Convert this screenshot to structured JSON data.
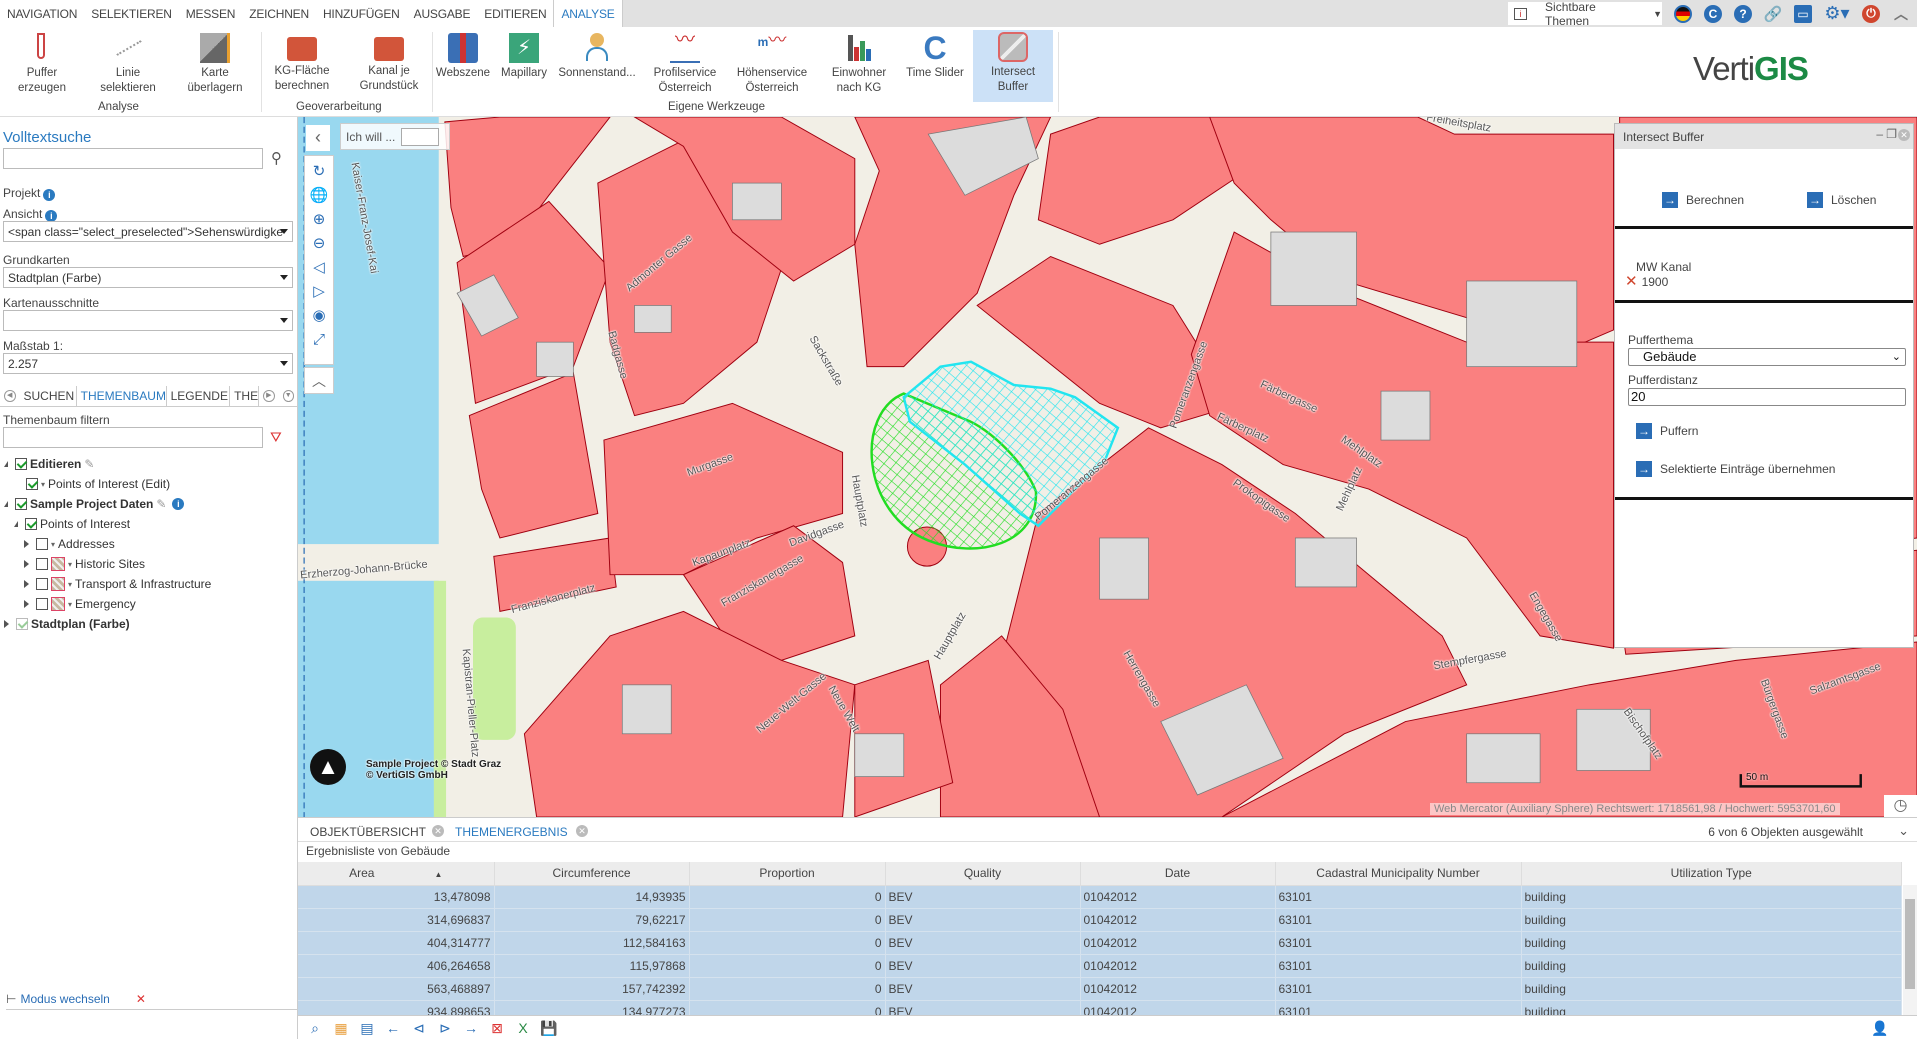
{
  "menu": {
    "tabs": [
      "NAVIGATION",
      "SELEKTIEREN",
      "MESSEN",
      "ZEICHNEN",
      "HINZUFÜGEN",
      "AUSGABE",
      "EDITIEREN",
      "ANALYSE"
    ],
    "active": "ANALYSE"
  },
  "topbar": {
    "visible_themes": "Sichtbare Themen",
    "icons": [
      "info-bubble-icon",
      "german-flag-icon",
      "refresh-icon",
      "help-icon",
      "link-icon",
      "save-icon",
      "settings-icon",
      "power-icon",
      "collapse-up-icon"
    ]
  },
  "ribbon": {
    "buttons": [
      {
        "l1": "Puffer",
        "l2": "erzeugen"
      },
      {
        "l1": "Linie",
        "l2": "selektieren"
      },
      {
        "l1": "Karte",
        "l2": "überlagern"
      },
      {
        "l1": "KG-Fläche",
        "l2": "berechnen"
      },
      {
        "l1": "Kanal je",
        "l2": "Grundstück"
      },
      {
        "l1": "Webszene",
        "l2": ""
      },
      {
        "l1": "Mapillary",
        "l2": ""
      },
      {
        "l1": "Sonnenstand...",
        "l2": ""
      },
      {
        "l1": "Profilservice",
        "l2": "Österreich"
      },
      {
        "l1": "Höhenservice",
        "l2": "Österreich"
      },
      {
        "l1": "Einwohner",
        "l2": "nach KG"
      },
      {
        "l1": "Time Slider",
        "l2": ""
      },
      {
        "l1": "Intersect",
        "l2": "Buffer"
      }
    ],
    "groups": [
      "Analyse",
      "Geoverarbeitung",
      "Eigene Werkzeuge"
    ],
    "selected": "Intersect Buffer"
  },
  "logo": {
    "text1": "Verti",
    "text2": "GIS"
  },
  "left": {
    "search_title": "Volltextsuche",
    "search_value": "",
    "projekt": "Projekt",
    "ansicht": "Ansicht",
    "ansicht_value": "<span class=\"select_preselected\">Sehenswürdigke",
    "grundkarten": "Grundkarten",
    "grundkarten_value": "Stadtplan (Farbe)",
    "kartenausschnitte": "Kartenausschnitte",
    "kartenausschnitte_value": "",
    "massstab": "Maßstab 1:",
    "massstab_value": "2.257",
    "tabs": [
      "SUCHEN",
      "THEMENBAUM",
      "LEGENDE",
      "THEMEN"
    ],
    "active_tab": "THEMENBAUM",
    "filter_label": "Themenbaum filtern",
    "filter_value": "",
    "tree": [
      {
        "label": "Editieren",
        "checked": true,
        "bold": true
      },
      {
        "label": "Points of Interest (Edit)",
        "checked": true
      },
      {
        "label": "Sample Project Daten",
        "checked": true,
        "bold": true
      },
      {
        "label": "Points of Interest",
        "checked": true
      },
      {
        "label": "Addresses",
        "checked": false
      },
      {
        "label": "Historic Sites",
        "checked": false
      },
      {
        "label": "Transport & Infrastructure",
        "checked": false
      },
      {
        "label": "Emergency",
        "checked": false
      },
      {
        "label": "Stadtplan (Farbe)",
        "checked": true,
        "bold": true
      }
    ],
    "mode_switch": "Modus wechseln"
  },
  "map": {
    "ich_will": "Ich will ...",
    "labels": [
      "Kaiser-Franz-Josef-Kai",
      "Admonter Gasse",
      "Badgasse",
      "Sackstraße",
      "Murgasse",
      "Franziskanerplatz",
      "Franziskanergasse",
      "Kapaunplatz",
      "Davidgasse",
      "Hauptplatz",
      "Hauptplatz",
      "Erzherzog-Johann-Brücke",
      "Freiheitsplatz",
      "Pomeranzengasse",
      "Pomeranzengasse",
      "Färbergasse",
      "Färberplatz",
      "Prokopigasse",
      "Mehlplatz",
      "Mehlplatz",
      "Engegasse",
      "Stempfergasse",
      "Herrengasse",
      "Neue-Welt-Gasse",
      "Neue Welt",
      "Kapistran-Pieller-Platz",
      "Bischofplatz",
      "Bürgergasse",
      "Salzamtsgasse"
    ],
    "attribution1": "Sample Project © Stadt Graz",
    "attribution2": "© VertiGIS GmbH",
    "scale": "50 m",
    "coords": "Web Mercator (Auxiliary Sphere) Rechtswert: 1718561,98 / Hochwert: 5953701,60",
    "colors": {
      "building": "#fa8080",
      "water": "#99d8ef",
      "street": "#f2efe6",
      "courtyard": "#dcdcdc",
      "buffer": "#22dd22",
      "selection": "#22e5f0"
    }
  },
  "intersect_panel": {
    "title": "Intersect Buffer",
    "berechnen": "Berechnen",
    "loeschen": "Löschen",
    "layer": "MW Kanal",
    "feature": "1900",
    "pufferthema_label": "Pufferthema",
    "pufferthema_value": "Gebäude",
    "pufferdistanz_label": "Pufferdistanz",
    "pufferdistanz_value": "20",
    "puffern": "Puffern",
    "uebernehmen": "Selektierte Einträge übernehmen"
  },
  "results": {
    "tabs": [
      "OBJEKTÜBERSICHT",
      "THEMENERGEBNIS"
    ],
    "active_tab": "THEMENERGEBNIS",
    "selection_count": "6 von 6 Objekten ausgewählt",
    "subtitle": "Ergebnisliste von Gebäude",
    "columns": [
      "Area",
      "Circumference",
      "Proportion",
      "Quality",
      "Date",
      "Cadastral Municipality Number",
      "Utilization Type"
    ],
    "sort": {
      "column": "Area",
      "direction": "asc"
    },
    "rows": [
      [
        "13,478098",
        "14,93935",
        "0",
        "BEV",
        "01042012",
        "63101",
        "building"
      ],
      [
        "314,696837",
        "79,62217",
        "0",
        "BEV",
        "01042012",
        "63101",
        "building"
      ],
      [
        "404,314777",
        "112,584163",
        "0",
        "BEV",
        "01042012",
        "63101",
        "building"
      ],
      [
        "406,264658",
        "115,97868",
        "0",
        "BEV",
        "01042012",
        "63101",
        "building"
      ],
      [
        "563,468897",
        "157,742392",
        "0",
        "BEV",
        "01042012",
        "63101",
        "building"
      ],
      [
        "934,898653",
        "134,977273",
        "0",
        "BEV",
        "01042012",
        "63101",
        "building"
      ]
    ]
  }
}
